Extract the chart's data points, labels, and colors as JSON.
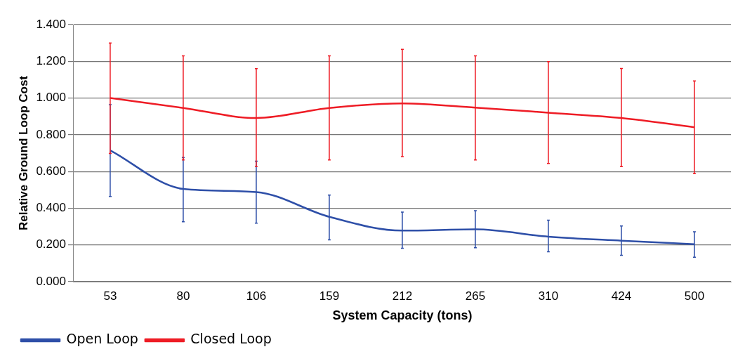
{
  "chart_data": {
    "type": "line",
    "xlabel": "System Capacity (tons)",
    "ylabel": "Relative Ground Loop Cost",
    "categories": [
      "53",
      "80",
      "106",
      "159",
      "212",
      "265",
      "310",
      "424",
      "500"
    ],
    "series": [
      {
        "name": "Open Loop",
        "color": "#2e4fa8",
        "values": [
          0.715,
          0.505,
          0.488,
          0.353,
          0.278,
          0.285,
          0.245,
          0.223,
          0.204
        ],
        "errors": [
          [
            0.464,
            0.964
          ],
          [
            0.326,
            0.676
          ],
          [
            0.318,
            0.656
          ],
          [
            0.228,
            0.471
          ],
          [
            0.182,
            0.379
          ],
          [
            0.185,
            0.386
          ],
          [
            0.163,
            0.335
          ],
          [
            0.143,
            0.303
          ],
          [
            0.133,
            0.272
          ]
        ]
      },
      {
        "name": "Closed Loop",
        "color": "#ee1c25",
        "values": [
          1.0,
          0.946,
          0.891,
          0.946,
          0.971,
          0.948,
          0.92,
          0.891,
          0.841
        ],
        "errors": [
          [
            0.698,
            1.3
          ],
          [
            0.663,
            1.23
          ],
          [
            0.627,
            1.16
          ],
          [
            0.663,
            1.23
          ],
          [
            0.681,
            1.265
          ],
          [
            0.663,
            1.23
          ],
          [
            0.644,
            1.198
          ],
          [
            0.626,
            1.161
          ],
          [
            0.588,
            1.093
          ]
        ]
      }
    ],
    "ylim": [
      0,
      1.4
    ],
    "yticks": [
      {
        "value": 0,
        "label": "0.000"
      },
      {
        "value": 0.2,
        "label": "0.200"
      },
      {
        "value": 0.4,
        "label": "0.400"
      },
      {
        "value": 0.6,
        "label": "0.600"
      },
      {
        "value": 0.8,
        "label": "0.800"
      },
      {
        "value": 1.0,
        "label": "1.000"
      },
      {
        "value": 1.2,
        "label": "1.200"
      },
      {
        "value": 1.4,
        "label": "1.400"
      }
    ],
    "grid": "y",
    "legend": "bottom left",
    "marker": "none",
    "line_style": "solid"
  }
}
